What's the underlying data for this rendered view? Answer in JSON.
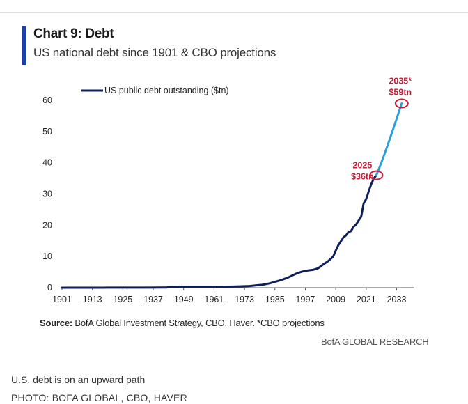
{
  "header": {
    "title": "Chart 9: Debt",
    "subtitle": "US national debt since 1901 & CBO projections"
  },
  "colors": {
    "accent": "#1a3fa8",
    "historical_line": "#0f1f5c",
    "projection_line": "#2a9fd8",
    "annotation": "#c41e3a"
  },
  "chart_data": {
    "type": "line",
    "title": "",
    "xlabel": "",
    "ylabel": "",
    "xlim": [
      1901,
      2040
    ],
    "ylim": [
      0,
      60
    ],
    "x_ticks": [
      "1901",
      "1913",
      "1925",
      "1937",
      "1949",
      "1961",
      "1973",
      "1985",
      "1997",
      "2009",
      "2021",
      "2033"
    ],
    "y_ticks": [
      "0",
      "10",
      "20",
      "30",
      "40",
      "50",
      "60"
    ],
    "grid": false,
    "legend_position": "top-left",
    "series": [
      {
        "name": "US public debt outstanding ($tn)",
        "values": [
          [
            1901,
            0.0
          ],
          [
            1915,
            0.0
          ],
          [
            1917,
            0.01
          ],
          [
            1919,
            0.03
          ],
          [
            1925,
            0.02
          ],
          [
            1930,
            0.02
          ],
          [
            1935,
            0.03
          ],
          [
            1940,
            0.04
          ],
          [
            1942,
            0.07
          ],
          [
            1944,
            0.2
          ],
          [
            1946,
            0.27
          ],
          [
            1950,
            0.26
          ],
          [
            1955,
            0.27
          ],
          [
            1960,
            0.29
          ],
          [
            1965,
            0.32
          ],
          [
            1970,
            0.38
          ],
          [
            1975,
            0.54
          ],
          [
            1978,
            0.77
          ],
          [
            1980,
            0.91
          ],
          [
            1983,
            1.4
          ],
          [
            1986,
            2.1
          ],
          [
            1988,
            2.6
          ],
          [
            1990,
            3.2
          ],
          [
            1992,
            4.0
          ],
          [
            1994,
            4.7
          ],
          [
            1996,
            5.2
          ],
          [
            1998,
            5.5
          ],
          [
            2000,
            5.7
          ],
          [
            2002,
            6.2
          ],
          [
            2004,
            7.4
          ],
          [
            2006,
            8.5
          ],
          [
            2008,
            10.0
          ],
          [
            2009,
            11.9
          ],
          [
            2010,
            13.6
          ],
          [
            2011,
            14.8
          ],
          [
            2012,
            16.1
          ],
          [
            2013,
            16.7
          ],
          [
            2014,
            17.8
          ],
          [
            2015,
            18.1
          ],
          [
            2016,
            19.5
          ],
          [
            2017,
            20.2
          ],
          [
            2018,
            21.5
          ],
          [
            2019,
            22.7
          ],
          [
            2020,
            27.0
          ],
          [
            2021,
            28.4
          ],
          [
            2022,
            30.9
          ],
          [
            2023,
            33.2
          ],
          [
            2024,
            35.0
          ],
          [
            2025,
            36.0
          ]
        ]
      },
      {
        "name": "CBO projections",
        "values": [
          [
            2025,
            36.0
          ],
          [
            2026,
            38.0
          ],
          [
            2027,
            40.1
          ],
          [
            2028,
            42.3
          ],
          [
            2029,
            44.6
          ],
          [
            2030,
            46.9
          ],
          [
            2031,
            49.3
          ],
          [
            2032,
            51.7
          ],
          [
            2033,
            54.1
          ],
          [
            2034,
            56.6
          ],
          [
            2035,
            59.0
          ]
        ]
      }
    ],
    "annotations": [
      {
        "x": 2025,
        "y": 36,
        "label_year": "2025",
        "label_value": "$36tn"
      },
      {
        "x": 2035,
        "y": 59,
        "label_year": "2035*",
        "label_value": "$59tn"
      }
    ]
  },
  "footer": {
    "source_label": "Source:",
    "source_text": " BofA Global Investment Strategy, CBO, Haver. *CBO projections",
    "brand": "BofA GLOBAL RESEARCH",
    "caption": "U.S. debt is on an upward path",
    "credit": "PHOTO: BOFA GLOBAL, CBO, HAVER"
  }
}
